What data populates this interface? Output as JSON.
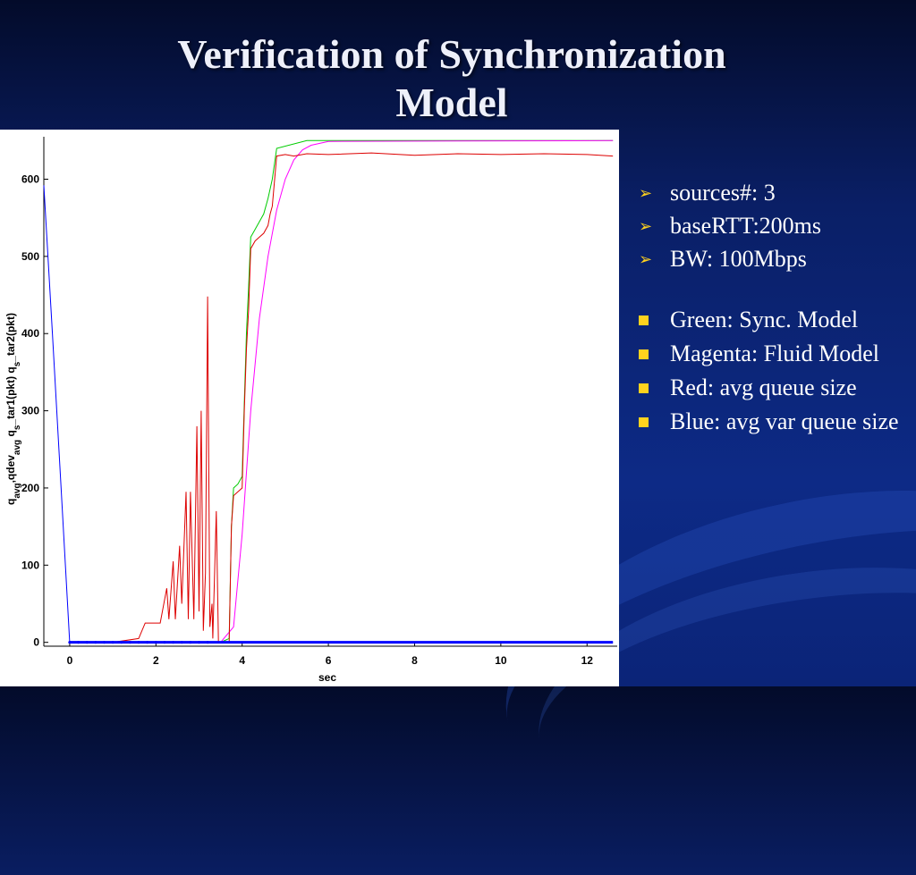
{
  "slide": {
    "title_line1": "Verification of Synchronization",
    "title_line2": "Model"
  },
  "bullets_top": [
    {
      "text": "sources#: 3"
    },
    {
      "text": "baseRTT:200ms"
    },
    {
      "text": "BW: 100Mbps"
    }
  ],
  "bullets_bottom": [
    {
      "text": "Green: Sync. Model"
    },
    {
      "text": "Magenta: Fluid Model"
    },
    {
      "text": "Red: avg queue size"
    },
    {
      "text": "Blue: avg var queue size"
    }
  ],
  "chart_data": {
    "type": "line",
    "title": "",
    "xlabel": "sec",
    "ylabel_parts": {
      "q1": "q",
      "sub1": "avg",
      "mid": ",qdev",
      "sub2": "avg",
      "q2": " q",
      "sub3": "s",
      "tail1": "_tar1(pkt)  q",
      "sub4": "s",
      "tail2": "_tar2(pkt)"
    },
    "xlim": [
      -0.6,
      12.7
    ],
    "ylim": [
      -5,
      655
    ],
    "x_ticks": [
      0,
      2,
      4,
      6,
      8,
      10,
      12
    ],
    "y_ticks": [
      0,
      100,
      200,
      300,
      400,
      500,
      600
    ],
    "series": [
      {
        "color": "#00cc00",
        "x": [
          0,
          3.2,
          3.5,
          3.7,
          3.75,
          3.8,
          3.9,
          4.0,
          4.05,
          4.1,
          4.15,
          4.2,
          4.3,
          4.4,
          4.5,
          4.6,
          4.7,
          4.8,
          5.5,
          12.6
        ],
        "y": [
          0,
          0,
          0,
          5,
          150,
          200,
          205,
          215,
          310,
          400,
          460,
          525,
          535,
          545,
          555,
          575,
          600,
          640,
          650,
          650
        ]
      },
      {
        "color": "#ff00ff",
        "x": [
          0,
          3.5,
          3.8,
          4.0,
          4.2,
          4.4,
          4.6,
          4.8,
          5.0,
          5.2,
          5.4,
          5.6,
          6.0,
          12.6
        ],
        "y": [
          0,
          0,
          20,
          140,
          300,
          420,
          500,
          560,
          600,
          625,
          638,
          644,
          649,
          650
        ]
      },
      {
        "color": "#dd0000",
        "x": [
          0,
          1.0,
          1.6,
          1.75,
          1.85,
          2.1,
          2.25,
          2.3,
          2.4,
          2.45,
          2.55,
          2.6,
          2.7,
          2.75,
          2.8,
          2.88,
          2.95,
          3.0,
          3.05,
          3.1,
          3.15,
          3.2,
          3.25,
          3.3,
          3.32,
          3.4,
          3.45,
          3.5,
          3.6,
          3.7,
          3.75,
          3.8,
          3.9,
          4.0,
          4.05,
          4.1,
          4.15,
          4.2,
          4.3,
          4.4,
          4.5,
          4.6,
          4.65,
          4.7,
          4.8,
          5.0,
          5.2,
          5.5,
          6.0,
          7.0,
          8.0,
          9.0,
          10.0,
          11.0,
          12.0,
          12.6
        ],
        "y": [
          0,
          0,
          5,
          25,
          25,
          25,
          70,
          30,
          105,
          30,
          125,
          50,
          195,
          30,
          195,
          30,
          280,
          40,
          300,
          15,
          90,
          448,
          20,
          50,
          5,
          170,
          0,
          0,
          0,
          0,
          150,
          190,
          195,
          200,
          300,
          380,
          430,
          510,
          520,
          525,
          530,
          540,
          555,
          565,
          630,
          632,
          630,
          633,
          632,
          634,
          631,
          633,
          632,
          633,
          632,
          630
        ]
      },
      {
        "color": "#0000ff",
        "x": [
          -0.6,
          -0.4,
          -0.2,
          0,
          12.6
        ],
        "y": [
          592,
          400,
          200,
          0,
          0
        ]
      }
    ]
  }
}
